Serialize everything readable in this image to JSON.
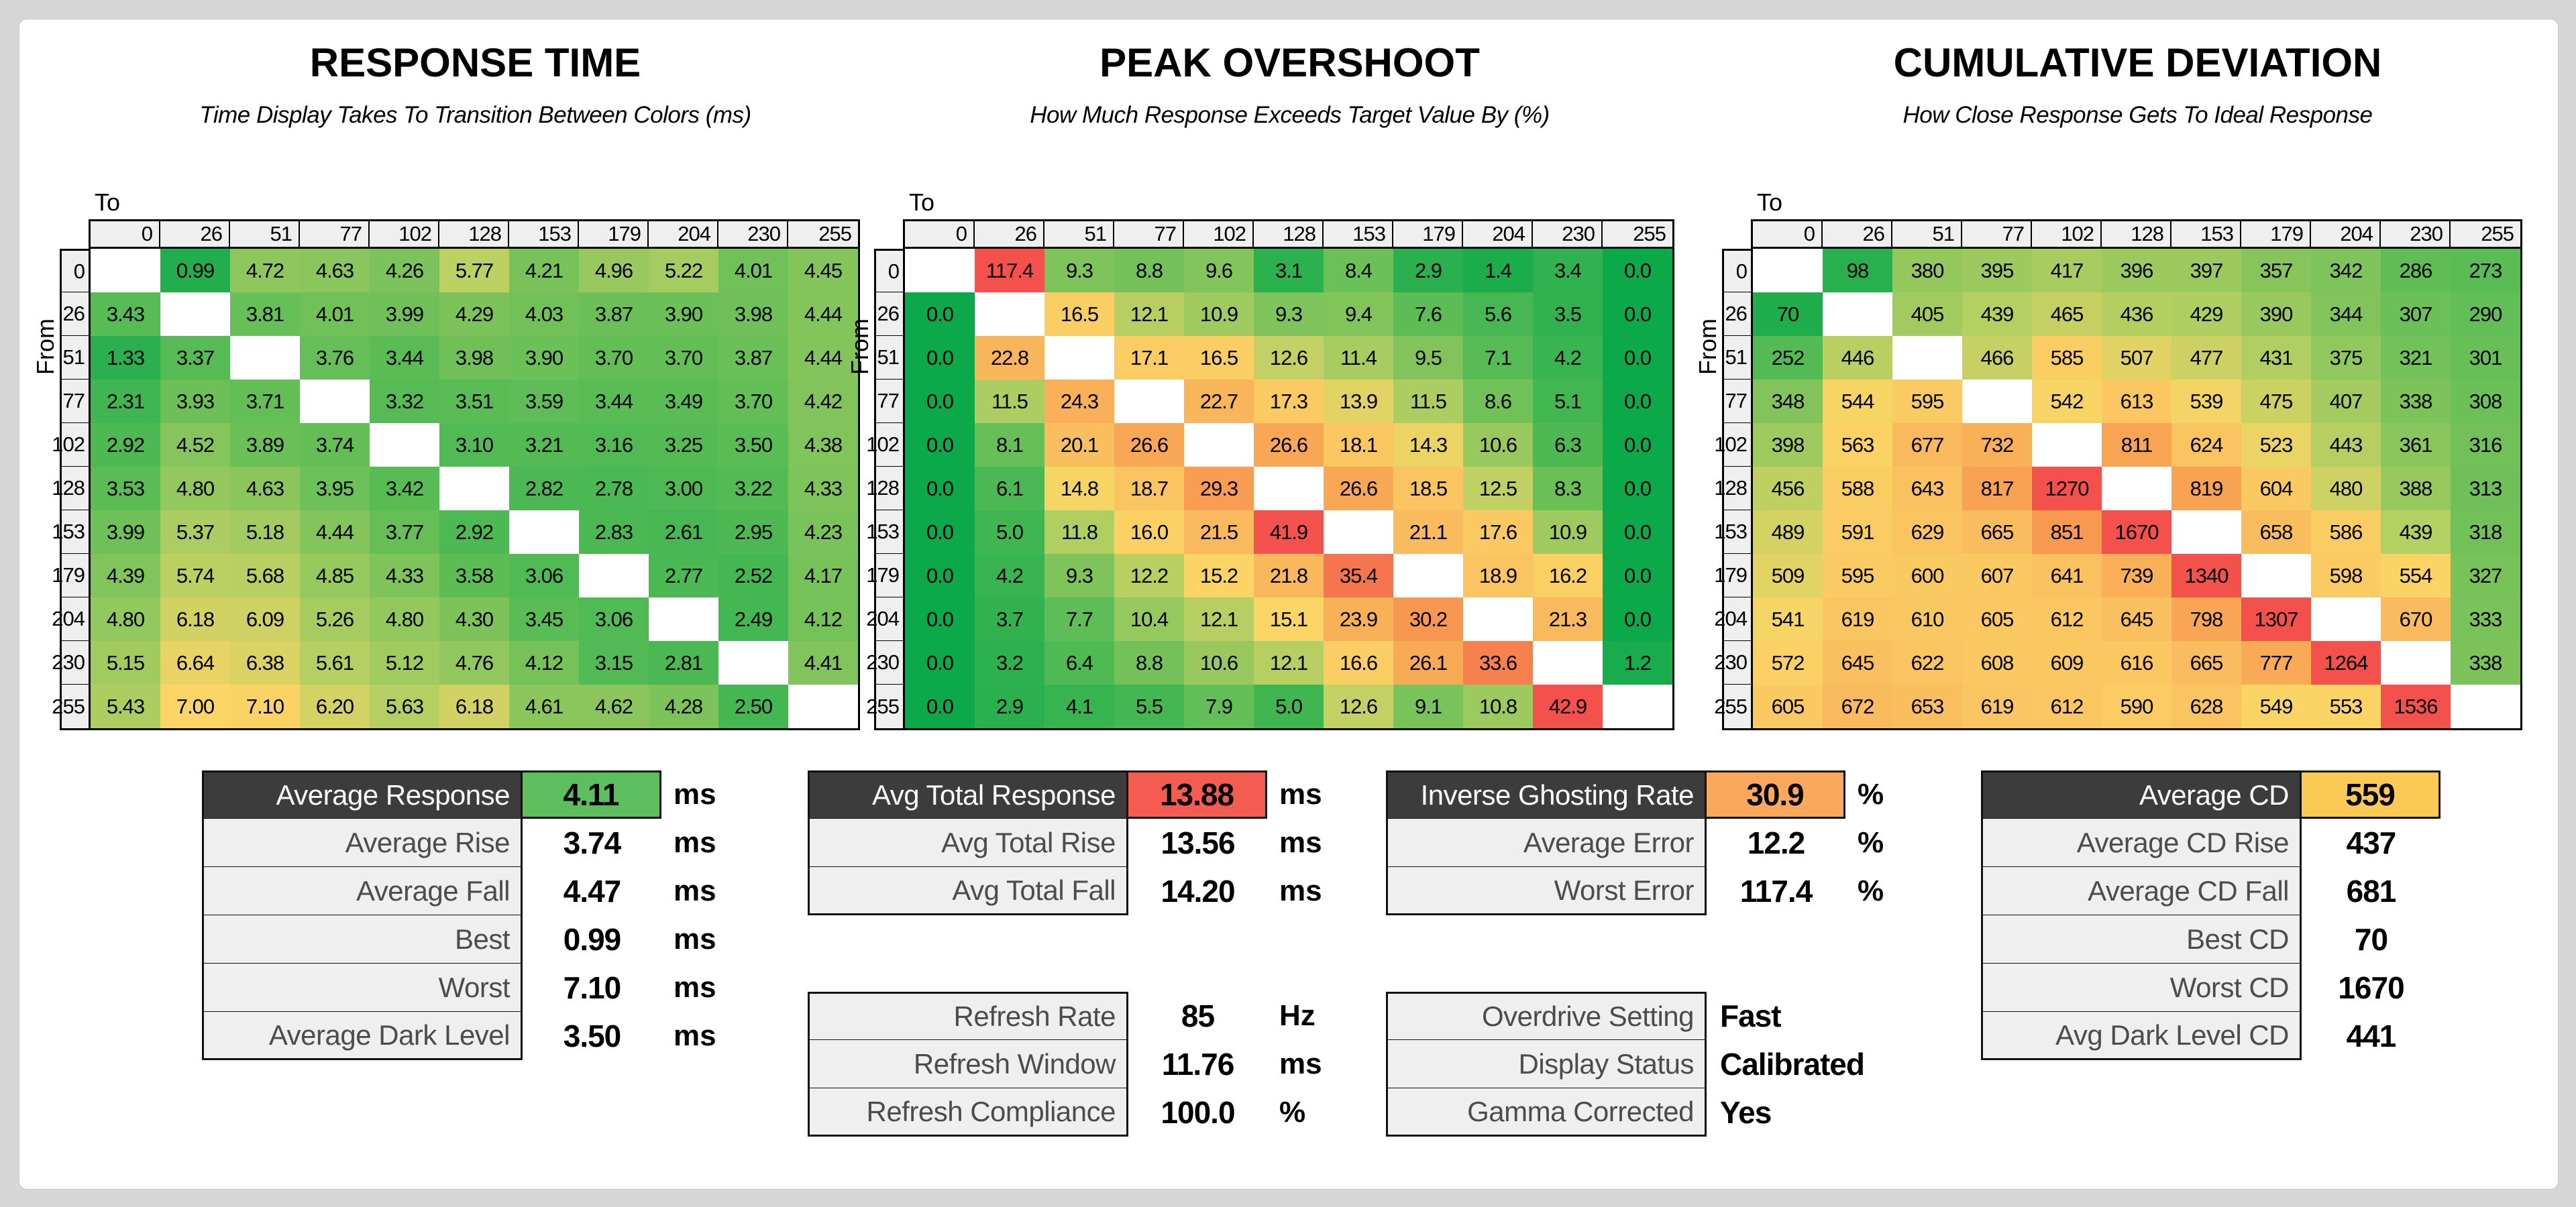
{
  "page": {
    "background": "#d6d6d6",
    "sheet_background": "#ffffff"
  },
  "colors": {
    "summary_header_bg": "#3c3c3c",
    "summary_header_text": "#ffffff",
    "summary_label_bg": "#efefef",
    "summary_label_text": "#4c4c4c",
    "matrix_header_bg": "#efefef",
    "value_boxes": {
      "green": "#5cbe5c",
      "red": "#f45b51",
      "orange": "#f9a85c",
      "amber": "#fbca54"
    },
    "heat_stops": [
      [
        0.0,
        "#0ca94a"
      ],
      [
        0.25,
        "#5abc55"
      ],
      [
        0.4,
        "#b5cf62"
      ],
      [
        0.5,
        "#fbd565"
      ],
      [
        0.6,
        "#f9bd5e"
      ],
      [
        0.75,
        "#f8a251"
      ],
      [
        0.88,
        "#f5744e"
      ],
      [
        1.0,
        "#f4514d"
      ]
    ]
  },
  "chart_data": {
    "type": "heatmap",
    "axis": {
      "to_label": "To",
      "from_label": "From"
    },
    "levels": [
      0,
      26,
      51,
      77,
      102,
      128,
      153,
      179,
      204,
      230,
      255
    ],
    "matrices": [
      {
        "id": "response-time",
        "title": "RESPONSE TIME",
        "subtitle": "Time Display Takes To Transition Between Colors (ms)",
        "unit": "ms",
        "color_scale": {
          "min": 0,
          "mid": 7,
          "max": 14
        },
        "rows": [
          [
            null,
            "0.99",
            "4.72",
            "4.63",
            "4.26",
            "5.77",
            "4.21",
            "4.96",
            "5.22",
            "4.01",
            "4.45"
          ],
          [
            "3.43",
            null,
            "3.81",
            "4.01",
            "3.99",
            "4.29",
            "4.03",
            "3.87",
            "3.90",
            "3.98",
            "4.44"
          ],
          [
            "1.33",
            "3.37",
            null,
            "3.76",
            "3.44",
            "3.98",
            "3.90",
            "3.70",
            "3.70",
            "3.87",
            "4.44"
          ],
          [
            "2.31",
            "3.93",
            "3.71",
            null,
            "3.32",
            "3.51",
            "3.59",
            "3.44",
            "3.49",
            "3.70",
            "4.42"
          ],
          [
            "2.92",
            "4.52",
            "3.89",
            "3.74",
            null,
            "3.10",
            "3.21",
            "3.16",
            "3.25",
            "3.50",
            "4.38"
          ],
          [
            "3.53",
            "4.80",
            "4.63",
            "3.95",
            "3.42",
            null,
            "2.82",
            "2.78",
            "3.00",
            "3.22",
            "4.33"
          ],
          [
            "3.99",
            "5.37",
            "5.18",
            "4.44",
            "3.77",
            "2.92",
            null,
            "2.83",
            "2.61",
            "2.95",
            "4.23"
          ],
          [
            "4.39",
            "5.74",
            "5.68",
            "4.85",
            "4.33",
            "3.58",
            "3.06",
            null,
            "2.77",
            "2.52",
            "4.17"
          ],
          [
            "4.80",
            "6.18",
            "6.09",
            "5.26",
            "4.80",
            "4.30",
            "3.45",
            "3.06",
            null,
            "2.49",
            "4.12"
          ],
          [
            "5.15",
            "6.64",
            "6.38",
            "5.61",
            "5.12",
            "4.76",
            "4.12",
            "3.15",
            "2.81",
            null,
            "4.41"
          ],
          [
            "5.43",
            "7.00",
            "7.10",
            "6.20",
            "5.63",
            "6.18",
            "4.61",
            "4.62",
            "4.28",
            "2.50",
            null
          ]
        ]
      },
      {
        "id": "peak-overshoot",
        "title": "PEAK OVERSHOOT",
        "subtitle": "How Much Response Exceeds Target Value By (%)",
        "unit": "%",
        "color_scale": {
          "min": 0,
          "mid": 15,
          "max": 42
        },
        "rows": [
          [
            null,
            "117.4",
            "9.3",
            "8.8",
            "9.6",
            "3.1",
            "8.4",
            "2.9",
            "1.4",
            "3.4",
            "0.0"
          ],
          [
            "0.0",
            null,
            "16.5",
            "12.1",
            "10.9",
            "9.3",
            "9.4",
            "7.6",
            "5.6",
            "3.5",
            "0.0"
          ],
          [
            "0.0",
            "22.8",
            null,
            "17.1",
            "16.5",
            "12.6",
            "11.4",
            "9.5",
            "7.1",
            "4.2",
            "0.0"
          ],
          [
            "0.0",
            "11.5",
            "24.3",
            null,
            "22.7",
            "17.3",
            "13.9",
            "11.5",
            "8.6",
            "5.1",
            "0.0"
          ],
          [
            "0.0",
            "8.1",
            "20.1",
            "26.6",
            null,
            "26.6",
            "18.1",
            "14.3",
            "10.6",
            "6.3",
            "0.0"
          ],
          [
            "0.0",
            "6.1",
            "14.8",
            "18.7",
            "29.3",
            null,
            "26.6",
            "18.5",
            "12.5",
            "8.3",
            "0.0"
          ],
          [
            "0.0",
            "5.0",
            "11.8",
            "16.0",
            "21.5",
            "41.9",
            null,
            "21.1",
            "17.6",
            "10.9",
            "0.0"
          ],
          [
            "0.0",
            "4.2",
            "9.3",
            "12.2",
            "15.2",
            "21.8",
            "35.4",
            null,
            "18.9",
            "16.2",
            "0.0"
          ],
          [
            "0.0",
            "3.7",
            "7.7",
            "10.4",
            "12.1",
            "15.1",
            "23.9",
            "30.2",
            null,
            "21.3",
            "0.0"
          ],
          [
            "0.0",
            "3.2",
            "6.4",
            "8.8",
            "10.6",
            "12.1",
            "16.6",
            "26.1",
            "33.6",
            null,
            "1.2"
          ],
          [
            "0.0",
            "2.9",
            "4.1",
            "5.5",
            "7.9",
            "5.0",
            "12.6",
            "9.1",
            "10.8",
            "42.9",
            null
          ]
        ]
      },
      {
        "id": "cumulative-deviation",
        "title": "CUMULATIVE DEVIATION",
        "subtitle": "How Close Response Gets To Ideal Response",
        "unit": "",
        "color_scale": {
          "min": 0,
          "mid": 550,
          "max": 1100
        },
        "rows": [
          [
            null,
            "98",
            "380",
            "395",
            "417",
            "396",
            "397",
            "357",
            "342",
            "286",
            "273"
          ],
          [
            "70",
            null,
            "405",
            "439",
            "465",
            "436",
            "429",
            "390",
            "344",
            "307",
            "290"
          ],
          [
            "252",
            "446",
            null,
            "466",
            "585",
            "507",
            "477",
            "431",
            "375",
            "321",
            "301"
          ],
          [
            "348",
            "544",
            "595",
            null,
            "542",
            "613",
            "539",
            "475",
            "407",
            "338",
            "308"
          ],
          [
            "398",
            "563",
            "677",
            "732",
            null,
            "811",
            "624",
            "523",
            "443",
            "361",
            "316"
          ],
          [
            "456",
            "588",
            "643",
            "817",
            "1270",
            null,
            "819",
            "604",
            "480",
            "388",
            "313"
          ],
          [
            "489",
            "591",
            "629",
            "665",
            "851",
            "1670",
            null,
            "658",
            "586",
            "439",
            "318"
          ],
          [
            "509",
            "595",
            "600",
            "607",
            "641",
            "739",
            "1340",
            null,
            "598",
            "554",
            "327"
          ],
          [
            "541",
            "619",
            "610",
            "605",
            "612",
            "645",
            "798",
            "1307",
            null,
            "670",
            "333"
          ],
          [
            "572",
            "645",
            "622",
            "608",
            "609",
            "616",
            "665",
            "777",
            "1264",
            null,
            "338"
          ],
          [
            "605",
            "672",
            "653",
            "619",
            "612",
            "590",
            "628",
            "549",
            "553",
            "1536",
            null
          ]
        ]
      }
    ]
  },
  "summary_tables": [
    {
      "id": "response-summary",
      "blocks": [
        {
          "rows": [
            {
              "label": "Average Response",
              "value": "4.11",
              "unit": "ms",
              "header": true,
              "value_color": "green"
            },
            {
              "label": "Average Rise",
              "value": "3.74",
              "unit": "ms"
            },
            {
              "label": "Average Fall",
              "value": "4.47",
              "unit": "ms"
            },
            {
              "label": "Best",
              "value": "0.99",
              "unit": "ms"
            },
            {
              "label": "Worst",
              "value": "7.10",
              "unit": "ms"
            },
            {
              "label": "Average Dark Level",
              "value": "3.50",
              "unit": "ms"
            }
          ]
        }
      ]
    },
    {
      "id": "total-response-summary",
      "blocks": [
        {
          "rows": [
            {
              "label": "Avg Total Response",
              "value": "13.88",
              "unit": "ms",
              "header": true,
              "value_color": "red"
            },
            {
              "label": "Avg Total Rise",
              "value": "13.56",
              "unit": "ms"
            },
            {
              "label": "Avg Total Fall",
              "value": "14.20",
              "unit": "ms"
            }
          ]
        },
        {
          "rows": [
            {
              "label": "Refresh Rate",
              "value": "85",
              "unit": "Hz"
            },
            {
              "label": "Refresh Window",
              "value": "11.76",
              "unit": "ms"
            },
            {
              "label": "Refresh Compliance",
              "value": "100.0",
              "unit": "%"
            }
          ]
        }
      ]
    },
    {
      "id": "overshoot-summary",
      "blocks": [
        {
          "rows": [
            {
              "label": "Inverse Ghosting Rate",
              "value": "30.9",
              "unit": "%",
              "header": true,
              "value_color": "orange"
            },
            {
              "label": "Average Error",
              "value": "12.2",
              "unit": "%"
            },
            {
              "label": "Worst Error",
              "value": "117.4",
              "unit": "%"
            }
          ]
        },
        {
          "rows": [
            {
              "label": "Overdrive Setting",
              "value": "Fast",
              "unit": "",
              "align": "left"
            },
            {
              "label": "Display Status",
              "value": "Calibrated",
              "unit": "",
              "align": "left"
            },
            {
              "label": "Gamma Corrected",
              "value": "Yes",
              "unit": "",
              "align": "left"
            }
          ]
        }
      ]
    },
    {
      "id": "cd-summary",
      "blocks": [
        {
          "rows": [
            {
              "label": "Average CD",
              "value": "559",
              "unit": "",
              "header": true,
              "value_color": "amber"
            },
            {
              "label": "Average CD Rise",
              "value": "437",
              "unit": ""
            },
            {
              "label": "Average CD Fall",
              "value": "681",
              "unit": ""
            },
            {
              "label": "Best CD",
              "value": "70",
              "unit": ""
            },
            {
              "label": "Worst CD",
              "value": "1670",
              "unit": ""
            },
            {
              "label": "Avg Dark Level CD",
              "value": "441",
              "unit": ""
            }
          ]
        }
      ]
    }
  ]
}
